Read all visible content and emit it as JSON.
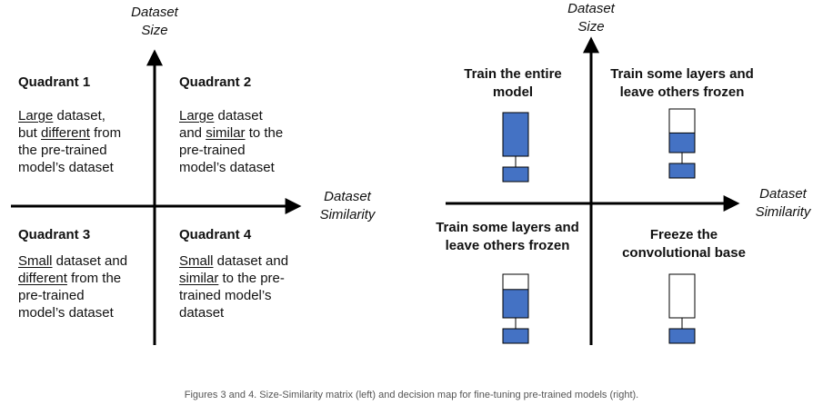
{
  "left": {
    "y_axis_label": [
      "Dataset",
      "Size"
    ],
    "x_axis_label": [
      "Dataset",
      "Similarity"
    ],
    "quadrants": [
      {
        "title": "Quadrant 1",
        "lines": [
          [
            {
              "u": "Large"
            },
            {
              "t": " dataset,"
            }
          ],
          [
            {
              "t": "but "
            },
            {
              "u": "different"
            },
            {
              "t": " from"
            }
          ],
          [
            {
              "t": "the pre-trained"
            }
          ],
          [
            {
              "t": "model’s dataset"
            }
          ]
        ]
      },
      {
        "title": "Quadrant 2",
        "lines": [
          [
            {
              "u": "Large"
            },
            {
              "t": " dataset"
            }
          ],
          [
            {
              "t": "and "
            },
            {
              "u": "similar"
            },
            {
              "t": " to the"
            }
          ],
          [
            {
              "t": "pre-trained"
            }
          ],
          [
            {
              "t": "model’s dataset"
            }
          ]
        ]
      },
      {
        "title": "Quadrant 3",
        "lines": [
          [
            {
              "u": "Small"
            },
            {
              "t": " dataset and"
            }
          ],
          [
            {
              "u": "different"
            },
            {
              "t": " from the"
            }
          ],
          [
            {
              "t": "pre-trained"
            }
          ],
          [
            {
              "t": "model’s dataset"
            }
          ]
        ]
      },
      {
        "title": "Quadrant 4",
        "lines": [
          [
            {
              "u": "Small"
            },
            {
              "t": " dataset and"
            }
          ],
          [
            {
              "u": "similar"
            },
            {
              "t": " to the pre-"
            }
          ],
          [
            {
              "t": "trained model’s"
            }
          ],
          [
            {
              "t": "dataset"
            }
          ]
        ]
      }
    ]
  },
  "right": {
    "y_axis_label": [
      "Dataset",
      "Size"
    ],
    "x_axis_label": [
      "Dataset",
      "Similarity"
    ],
    "strategies": [
      {
        "lines": [
          "Train the entire",
          "model"
        ],
        "trained_fraction": 1.0
      },
      {
        "lines": [
          "Train some layers and",
          "leave others frozen"
        ],
        "trained_fraction": 0.45
      },
      {
        "lines": [
          "Train some layers and",
          "leave others frozen"
        ],
        "trained_fraction": 0.65
      },
      {
        "lines": [
          "Freeze the",
          "convolutional base"
        ],
        "trained_fraction": 0.0
      }
    ]
  },
  "caption": "Figures 3 and 4. Size-Similarity matrix (left) and decision map for fine-tuning pre-trained models (right).",
  "colors": {
    "block_fill": "#4472c4",
    "block_stroke": "#000000",
    "axis": "#000000",
    "caption": "#555555"
  }
}
